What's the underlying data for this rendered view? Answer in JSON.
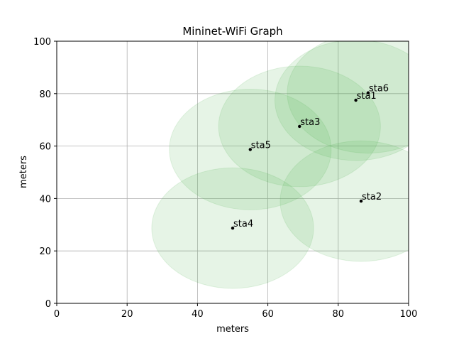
{
  "chart_data": {
    "type": "scatter",
    "title": "Mininet-WiFi Graph",
    "xlabel": "meters",
    "ylabel": "meters",
    "xlim": [
      0,
      100
    ],
    "ylim": [
      0,
      100
    ],
    "xticks": [
      0,
      20,
      40,
      60,
      80,
      100
    ],
    "yticks": [
      0,
      20,
      40,
      60,
      80,
      100
    ],
    "grid": true,
    "range_color": "#4caf50",
    "range_radius": 23,
    "stations": [
      {
        "name": "sta1",
        "x": 85,
        "y": 77.5
      },
      {
        "name": "sta2",
        "x": 86.5,
        "y": 39
      },
      {
        "name": "sta3",
        "x": 69,
        "y": 67.5
      },
      {
        "name": "sta4",
        "x": 50,
        "y": 28.7
      },
      {
        "name": "sta5",
        "x": 55,
        "y": 58.7
      },
      {
        "name": "sta6",
        "x": 88.5,
        "y": 80.3
      }
    ]
  }
}
